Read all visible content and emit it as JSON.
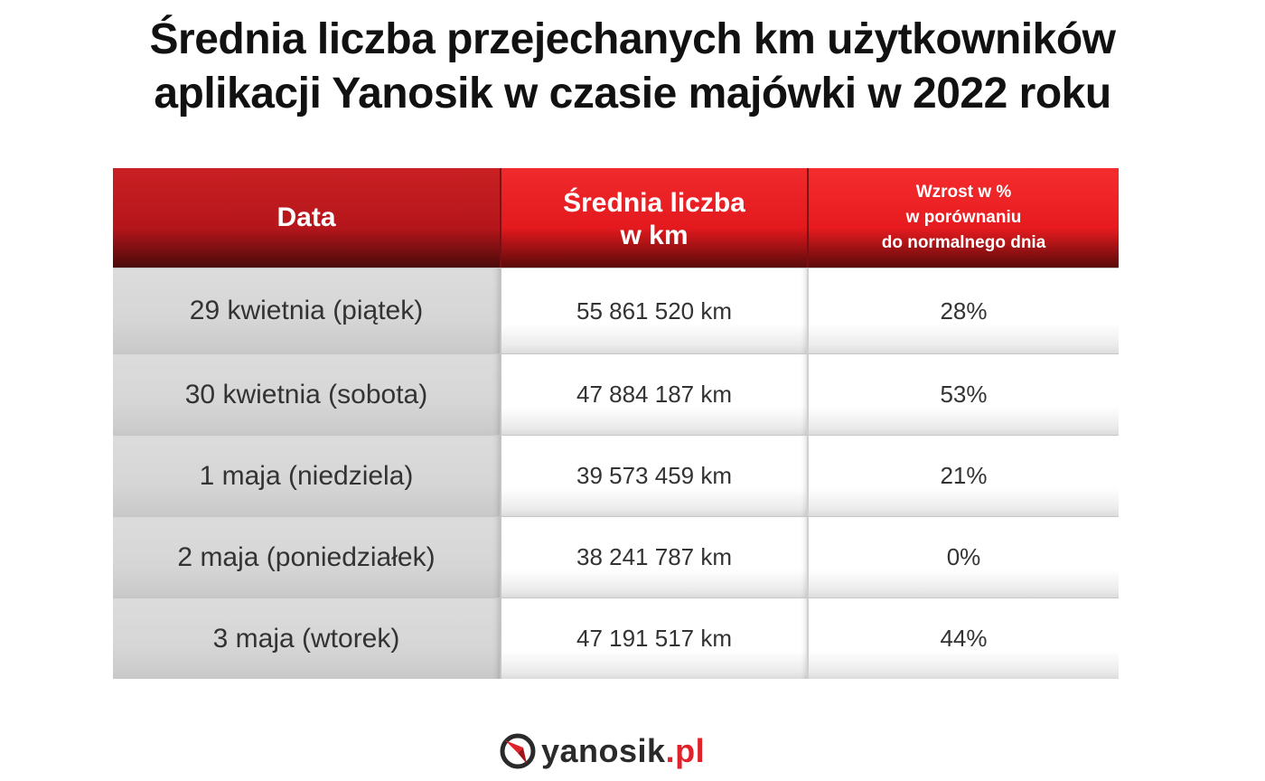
{
  "title": {
    "line1": "Średnia liczba przejechanych km użytkowników",
    "line2": "aplikacji Yanosik w czasie majówki w 2022 roku"
  },
  "table": {
    "headers": {
      "date": "Data",
      "avg_line1": "Średnia liczba",
      "avg_line2": "w km",
      "growth_line1": "Wzrost w %",
      "growth_line2": "w porównaniu",
      "growth_line3": "do normalnego dnia"
    },
    "rows": [
      {
        "date": "29 kwietnia (piątek)",
        "km": "55 861 520 km",
        "growth": "28%"
      },
      {
        "date": "30 kwietnia (sobota)",
        "km": "47 884 187 km",
        "growth": "53%"
      },
      {
        "date": "1 maja (niedziela)",
        "km": "39 573 459 km",
        "growth": "21%"
      },
      {
        "date": "2 maja (poniedziałek)",
        "km": "38 241 787 km",
        "growth": "0%"
      },
      {
        "date": "3 maja (wtorek)",
        "km": "47 191 517 km",
        "growth": "44%"
      }
    ]
  },
  "logo": {
    "name": "yanosik",
    "tld": ".pl",
    "icon": "yanosik-logo-icon",
    "accent_color": "#e0232a"
  },
  "colors": {
    "header_red": "#e3191d",
    "date_column_gray": "#d6d6d6"
  }
}
